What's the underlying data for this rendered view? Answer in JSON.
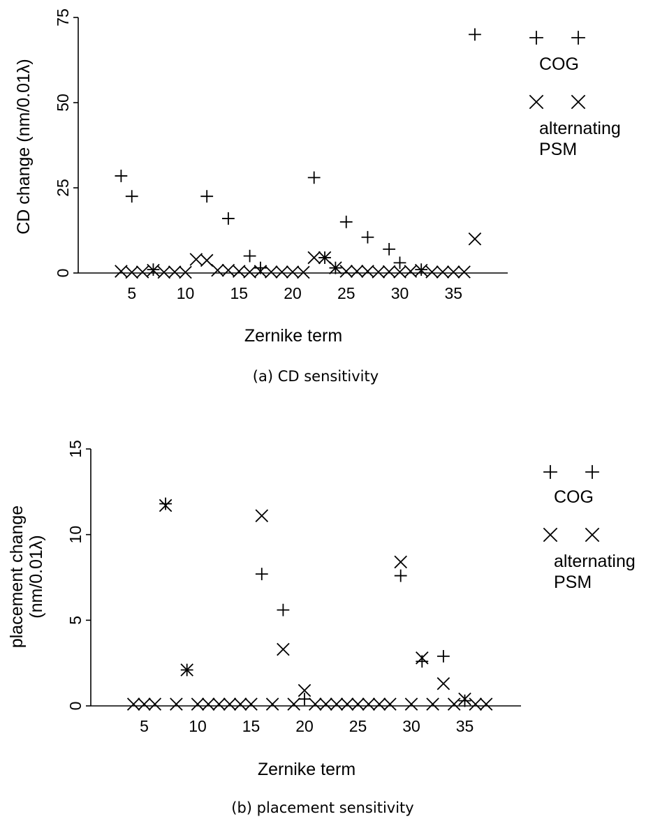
{
  "chart_data": [
    {
      "type": "scatter",
      "caption": "(a) CD sensitivity",
      "xlabel": "Zernike term",
      "ylabel": "CD change (nm/0.01λ)",
      "xlim": [
        0,
        40
      ],
      "ylim": [
        0,
        75
      ],
      "xticks": [
        5,
        10,
        15,
        20,
        25,
        30,
        35
      ],
      "yticks": [
        0,
        25,
        50,
        75
      ],
      "grid": false,
      "legend_position": "right",
      "series": [
        {
          "name": "COG",
          "marker": "plus",
          "points": [
            [
              4,
              28.5
            ],
            [
              5,
              22.5
            ],
            [
              7,
              1
            ],
            [
              12,
              22.5
            ],
            [
              14,
              16
            ],
            [
              16,
              5
            ],
            [
              17,
              1.5
            ],
            [
              22,
              28
            ],
            [
              23,
              4.5
            ],
            [
              24,
              1.5
            ],
            [
              25,
              15
            ],
            [
              27,
              10.5
            ],
            [
              29,
              7
            ],
            [
              30,
              3
            ],
            [
              32,
              1
            ],
            [
              37,
              70
            ]
          ]
        },
        {
          "name": "alternating PSM",
          "marker": "cross",
          "points": [
            [
              4,
              0.5
            ],
            [
              5,
              0.2
            ],
            [
              6,
              0.3
            ],
            [
              7,
              0.8
            ],
            [
              8,
              0.2
            ],
            [
              9,
              0.3
            ],
            [
              10,
              0.2
            ],
            [
              11,
              4
            ],
            [
              12,
              3.7
            ],
            [
              13,
              0.8
            ],
            [
              14,
              0.8
            ],
            [
              15,
              0.5
            ],
            [
              16,
              0.3
            ],
            [
              17,
              0.5
            ],
            [
              18,
              0.3
            ],
            [
              19,
              0.3
            ],
            [
              20,
              0.3
            ],
            [
              21,
              0.2
            ],
            [
              22,
              4.5
            ],
            [
              23,
              4.5
            ],
            [
              24,
              1.5
            ],
            [
              25,
              0.5
            ],
            [
              26,
              0.5
            ],
            [
              27,
              0.5
            ],
            [
              28,
              0.3
            ],
            [
              29,
              0.4
            ],
            [
              30,
              0.3
            ],
            [
              31,
              0.5
            ],
            [
              32,
              0.8
            ],
            [
              33,
              0.3
            ],
            [
              34,
              0.3
            ],
            [
              35,
              0.3
            ],
            [
              36,
              0.3
            ],
            [
              37,
              10
            ]
          ]
        }
      ]
    },
    {
      "type": "scatter",
      "caption": "(b) placement sensitivity",
      "xlabel": "Zernike term",
      "ylabel": [
        "placement change",
        "(nm/0.01λ)"
      ],
      "xlim": [
        0,
        40
      ],
      "ylim": [
        0,
        15
      ],
      "xticks": [
        5,
        10,
        15,
        20,
        25,
        30,
        35
      ],
      "yticks": [
        0,
        5,
        10,
        15
      ],
      "grid": false,
      "legend_position": "right",
      "series": [
        {
          "name": "COG",
          "marker": "plus",
          "points": [
            [
              7,
              11.8
            ],
            [
              9,
              2.1
            ],
            [
              16,
              7.7
            ],
            [
              18,
              5.6
            ],
            [
              20,
              0.4
            ],
            [
              29,
              7.6
            ],
            [
              31,
              2.6
            ],
            [
              33,
              2.9
            ],
            [
              35,
              0.3
            ]
          ]
        },
        {
          "name": "alternating PSM",
          "marker": "cross",
          "points": [
            [
              4,
              0.1
            ],
            [
              5,
              0.1
            ],
            [
              6,
              0.1
            ],
            [
              7,
              11.7
            ],
            [
              8,
              0.1
            ],
            [
              9,
              2.1
            ],
            [
              10,
              0.1
            ],
            [
              11,
              0.1
            ],
            [
              12,
              0.1
            ],
            [
              13,
              0.1
            ],
            [
              14,
              0.1
            ],
            [
              15,
              0.1
            ],
            [
              16,
              11.1
            ],
            [
              17,
              0.1
            ],
            [
              18,
              3.3
            ],
            [
              19,
              0.1
            ],
            [
              20,
              0.9
            ],
            [
              21,
              0.1
            ],
            [
              22,
              0.1
            ],
            [
              23,
              0.1
            ],
            [
              24,
              0.1
            ],
            [
              25,
              0.1
            ],
            [
              26,
              0.1
            ],
            [
              27,
              0.1
            ],
            [
              28,
              0.1
            ],
            [
              29,
              8.4
            ],
            [
              30,
              0.1
            ],
            [
              31,
              2.8
            ],
            [
              32,
              0.1
            ],
            [
              33,
              1.3
            ],
            [
              34,
              0.1
            ],
            [
              35,
              0.4
            ],
            [
              36,
              0.1
            ],
            [
              37,
              0.1
            ]
          ]
        }
      ]
    }
  ]
}
